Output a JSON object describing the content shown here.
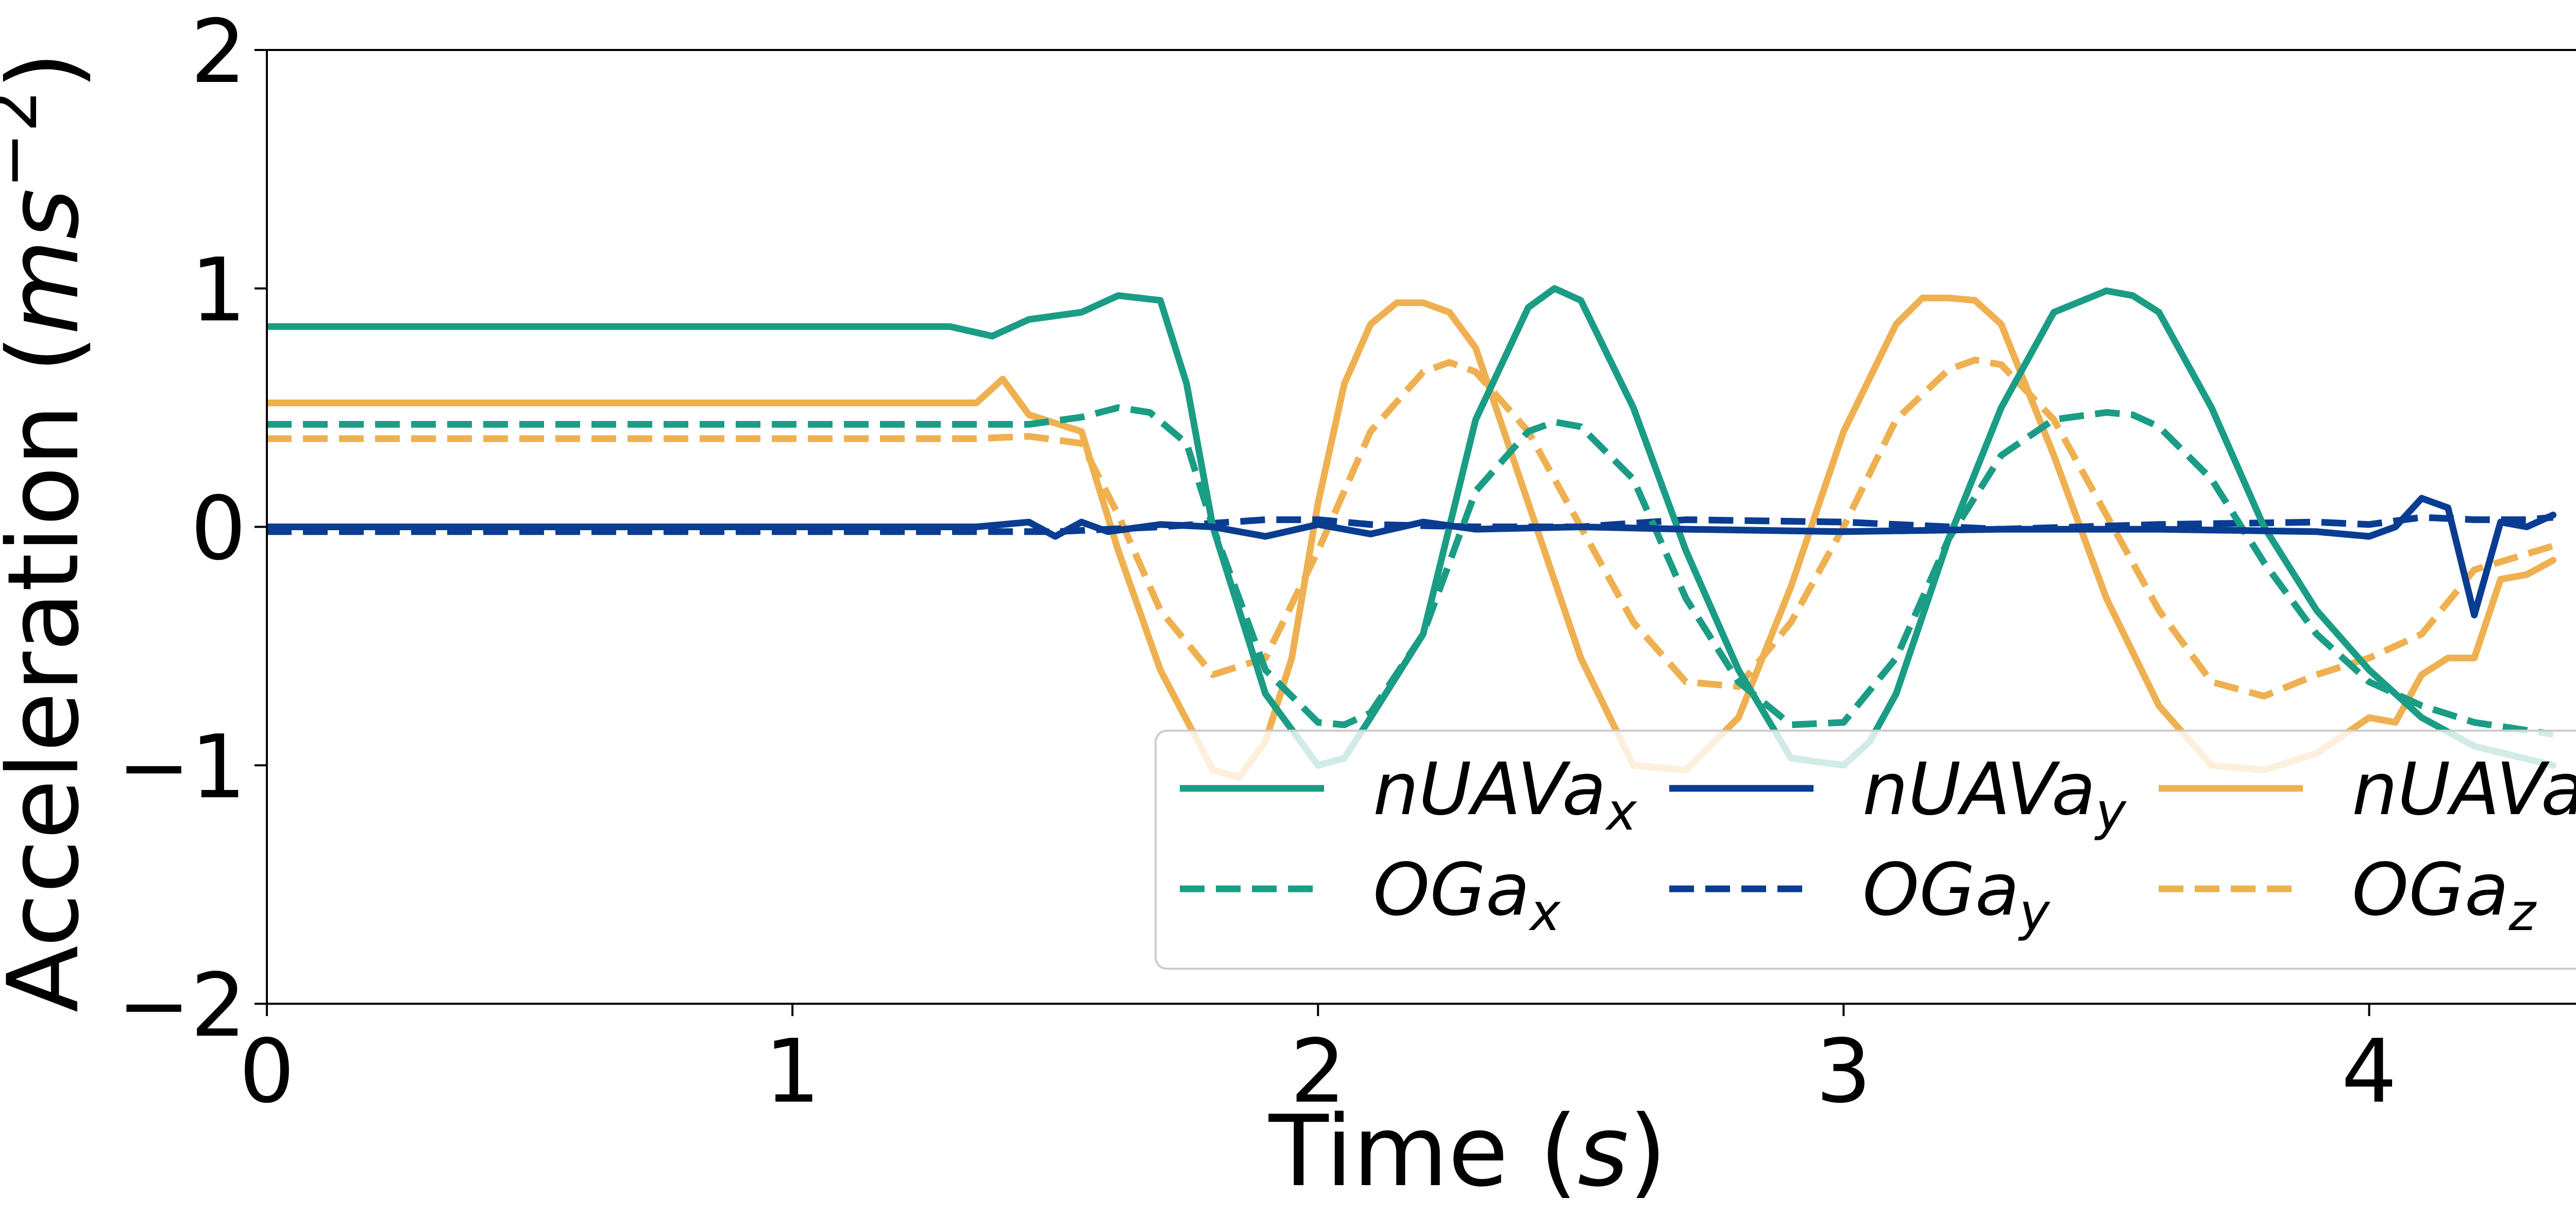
{
  "chart_data": {
    "type": "line",
    "xlabel": "Time (s)",
    "ylabel": "Acceleration (ms^-2)",
    "xlim": [
      0,
      4.57
    ],
    "ylim": [
      -2,
      2
    ],
    "xticks": [
      "0",
      "1",
      "2",
      "3",
      "4"
    ],
    "yticks": [
      "2",
      "1",
      "0",
      "−1",
      "−2"
    ],
    "grid": false,
    "legend_position": "lower-right",
    "legend_columns": 3,
    "colors": {
      "teal": "#1b9c85",
      "navy": "#0a3d91",
      "orange": "#eeb050"
    },
    "series": [
      {
        "name": "nUAVa_x",
        "label_base": "nUAVa",
        "label_sub": "x",
        "color": "#1b9c85",
        "dash": "solid",
        "x": [
          0,
          0.5,
          1.0,
          1.3,
          1.38,
          1.45,
          1.55,
          1.62,
          1.7,
          1.75,
          1.8,
          1.9,
          2.0,
          2.05,
          2.1,
          2.2,
          2.3,
          2.4,
          2.45,
          2.5,
          2.6,
          2.7,
          2.8,
          2.9,
          3.0,
          3.05,
          3.1,
          3.2,
          3.3,
          3.4,
          3.5,
          3.55,
          3.6,
          3.7,
          3.8,
          3.9,
          4.0,
          4.1,
          4.2,
          4.35
        ],
        "y": [
          0.84,
          0.84,
          0.84,
          0.84,
          0.8,
          0.87,
          0.9,
          0.97,
          0.95,
          0.6,
          0.0,
          -0.7,
          -1.0,
          -0.97,
          -0.8,
          -0.45,
          0.45,
          0.92,
          1.0,
          0.95,
          0.5,
          -0.1,
          -0.6,
          -0.97,
          -1.0,
          -0.9,
          -0.7,
          -0.05,
          0.5,
          0.9,
          0.99,
          0.97,
          0.9,
          0.5,
          0.0,
          -0.35,
          -0.6,
          -0.8,
          -0.92,
          -1.0
        ]
      },
      {
        "name": "OGa_x",
        "label_base": "OGa",
        "label_sub": "x",
        "color": "#1b9c85",
        "dash": "dashed",
        "x": [
          0,
          0.5,
          1.0,
          1.3,
          1.45,
          1.55,
          1.62,
          1.68,
          1.75,
          1.8,
          1.9,
          2.0,
          2.05,
          2.1,
          2.2,
          2.3,
          2.4,
          2.45,
          2.5,
          2.6,
          2.7,
          2.8,
          2.9,
          3.0,
          3.1,
          3.2,
          3.3,
          3.4,
          3.5,
          3.55,
          3.6,
          3.7,
          3.8,
          3.9,
          4.0,
          4.1,
          4.2,
          4.35
        ],
        "y": [
          0.43,
          0.43,
          0.43,
          0.43,
          0.43,
          0.46,
          0.5,
          0.48,
          0.35,
          0.0,
          -0.6,
          -0.82,
          -0.83,
          -0.78,
          -0.45,
          0.15,
          0.4,
          0.44,
          0.42,
          0.2,
          -0.3,
          -0.65,
          -0.83,
          -0.82,
          -0.55,
          -0.05,
          0.3,
          0.45,
          0.48,
          0.47,
          0.42,
          0.2,
          -0.15,
          -0.45,
          -0.65,
          -0.75,
          -0.82,
          -0.87
        ]
      },
      {
        "name": "nUAVa_y",
        "label_base": "nUAVa",
        "label_sub": "y",
        "color": "#0a3d91",
        "dash": "solid",
        "x": [
          0,
          0.5,
          1.0,
          1.35,
          1.45,
          1.5,
          1.55,
          1.6,
          1.7,
          1.8,
          1.9,
          2.0,
          2.1,
          2.2,
          2.3,
          2.5,
          2.7,
          3.0,
          3.3,
          3.6,
          3.9,
          4.0,
          4.05,
          4.1,
          4.15,
          4.2,
          4.25,
          4.3,
          4.35
        ],
        "y": [
          0.0,
          0.0,
          0.0,
          0.0,
          0.02,
          -0.04,
          0.02,
          -0.02,
          0.01,
          0.0,
          -0.04,
          0.01,
          -0.03,
          0.02,
          -0.01,
          0.0,
          -0.01,
          -0.02,
          -0.01,
          -0.01,
          -0.02,
          -0.04,
          0.0,
          0.12,
          0.08,
          -0.37,
          0.02,
          0.0,
          0.05
        ]
      },
      {
        "name": "OGa_y",
        "label_base": "OGa",
        "label_sub": "y",
        "color": "#0a3d91",
        "dash": "dashed",
        "x": [
          0,
          0.5,
          1.0,
          1.5,
          1.7,
          1.9,
          2.0,
          2.1,
          2.3,
          2.5,
          2.7,
          3.0,
          3.3,
          3.6,
          3.9,
          4.0,
          4.1,
          4.2,
          4.3,
          4.35
        ],
        "y": [
          -0.02,
          -0.02,
          -0.02,
          -0.02,
          0.0,
          0.03,
          0.03,
          0.01,
          0.0,
          0.0,
          0.03,
          0.02,
          -0.01,
          0.01,
          0.02,
          0.01,
          0.04,
          0.03,
          0.03,
          0.04
        ]
      },
      {
        "name": "nUAVa_z",
        "label_base": "nUAVa",
        "label_sub": "z",
        "color": "#eeb050",
        "dash": "solid",
        "x": [
          0,
          0.5,
          1.0,
          1.35,
          1.4,
          1.45,
          1.55,
          1.62,
          1.7,
          1.8,
          1.85,
          1.9,
          1.95,
          2.0,
          2.05,
          2.1,
          2.15,
          2.2,
          2.25,
          2.3,
          2.4,
          2.5,
          2.6,
          2.7,
          2.8,
          2.9,
          3.0,
          3.1,
          3.15,
          3.2,
          3.25,
          3.3,
          3.4,
          3.5,
          3.6,
          3.7,
          3.8,
          3.9,
          4.0,
          4.05,
          4.1,
          4.15,
          4.2,
          4.25,
          4.3,
          4.35
        ],
        "y": [
          0.52,
          0.52,
          0.52,
          0.52,
          0.62,
          0.47,
          0.4,
          -0.1,
          -0.6,
          -1.02,
          -1.05,
          -0.9,
          -0.55,
          0.1,
          0.6,
          0.85,
          0.94,
          0.94,
          0.9,
          0.75,
          0.1,
          -0.55,
          -1.0,
          -1.02,
          -0.8,
          -0.25,
          0.4,
          0.85,
          0.96,
          0.96,
          0.95,
          0.85,
          0.3,
          -0.3,
          -0.75,
          -1.0,
          -1.02,
          -0.95,
          -0.8,
          -0.82,
          -0.62,
          -0.55,
          -0.55,
          -0.22,
          -0.2,
          -0.14
        ]
      },
      {
        "name": "OGa_z",
        "label_base": "OGa",
        "label_sub": "z",
        "color": "#eeb050",
        "dash": "dashed",
        "x": [
          0,
          0.5,
          1.0,
          1.35,
          1.45,
          1.55,
          1.62,
          1.7,
          1.8,
          1.9,
          2.0,
          2.1,
          2.2,
          2.25,
          2.3,
          2.4,
          2.5,
          2.6,
          2.7,
          2.8,
          2.9,
          3.0,
          3.1,
          3.2,
          3.25,
          3.3,
          3.4,
          3.5,
          3.6,
          3.7,
          3.8,
          3.9,
          4.0,
          4.1,
          4.2,
          4.35
        ],
        "y": [
          0.37,
          0.37,
          0.37,
          0.37,
          0.38,
          0.35,
          0.05,
          -0.35,
          -0.62,
          -0.55,
          -0.1,
          0.4,
          0.65,
          0.69,
          0.65,
          0.4,
          0.0,
          -0.4,
          -0.65,
          -0.67,
          -0.4,
          0.0,
          0.45,
          0.66,
          0.7,
          0.68,
          0.45,
          0.05,
          -0.35,
          -0.65,
          -0.71,
          -0.62,
          -0.55,
          -0.45,
          -0.18,
          -0.08
        ]
      }
    ]
  }
}
